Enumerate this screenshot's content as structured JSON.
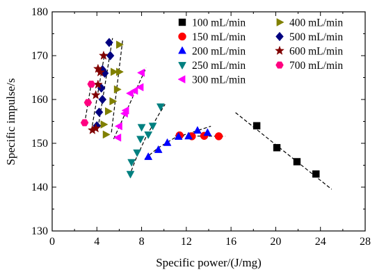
{
  "chart_data": {
    "type": "scatter",
    "title": "",
    "xlabel": "Specific power/(J/mg)",
    "ylabel": "Specific impulse/s",
    "xlim": [
      0,
      28
    ],
    "ylim": [
      130,
      180
    ],
    "xticks": [
      0,
      4,
      8,
      12,
      16,
      20,
      24,
      28
    ],
    "yticks": [
      130,
      140,
      150,
      160,
      170,
      180
    ],
    "grid": false,
    "legend_placement": "top-right",
    "series": [
      {
        "name": "100 mL/min",
        "marker": "square",
        "color": "#000000",
        "points": [
          [
            18.3,
            154.0
          ],
          [
            20.1,
            149.0
          ],
          [
            21.9,
            145.8
          ],
          [
            23.6,
            143.0
          ]
        ],
        "fit": [
          [
            16.4,
            157.0
          ],
          [
            25.0,
            139.5
          ]
        ]
      },
      {
        "name": "150 mL/min",
        "marker": "circle",
        "color": "#ff0000",
        "points": [
          [
            11.4,
            151.8
          ],
          [
            12.5,
            151.6
          ],
          [
            13.6,
            151.7
          ],
          [
            14.9,
            151.6
          ]
        ],
        "fit": [
          [
            11.0,
            151.7
          ],
          [
            15.5,
            151.6
          ]
        ]
      },
      {
        "name": "200 mL/min",
        "marker": "triangle-up",
        "color": "#0000ff",
        "points": [
          [
            8.6,
            146.9
          ],
          [
            9.5,
            148.5
          ],
          [
            10.3,
            150.1
          ],
          [
            11.3,
            151.5
          ],
          [
            12.2,
            151.6
          ],
          [
            13.0,
            152.9
          ],
          [
            13.9,
            152.4
          ]
        ],
        "fit": [
          [
            8.3,
            146.5
          ],
          [
            9.5,
            149.0
          ],
          [
            11.0,
            151.3
          ],
          [
            12.5,
            152.5
          ],
          [
            14.2,
            153.9
          ]
        ]
      },
      {
        "name": "250 mL/min",
        "marker": "triangle-down",
        "color": "#008080",
        "points": [
          [
            7.0,
            143.0
          ],
          [
            7.1,
            145.7
          ],
          [
            7.6,
            147.9
          ],
          [
            7.9,
            151.0
          ],
          [
            8.0,
            153.7
          ],
          [
            8.6,
            152.0
          ],
          [
            9.0,
            154.0
          ],
          [
            9.7,
            158.4
          ]
        ],
        "fit": [
          [
            6.9,
            142.5
          ],
          [
            7.5,
            146.5
          ],
          [
            8.4,
            151.5
          ],
          [
            9.4,
            156.0
          ],
          [
            10.1,
            158.9
          ]
        ]
      },
      {
        "name": "300 mL/min",
        "marker": "triangle-left",
        "color": "#ff00ff",
        "points": [
          [
            5.9,
            151.3
          ],
          [
            6.0,
            153.9
          ],
          [
            6.5,
            156.8
          ],
          [
            6.6,
            157.5
          ],
          [
            7.0,
            161.4
          ],
          [
            7.4,
            162.0
          ],
          [
            7.9,
            162.8
          ],
          [
            8.0,
            166.1
          ]
        ],
        "fit": [
          [
            5.5,
            151.0
          ],
          [
            8.4,
            167.2
          ]
        ]
      },
      {
        "name": "400 mL/min",
        "marker": "triangle-right",
        "color": "#808000",
        "points": [
          [
            4.8,
            152.0
          ],
          [
            4.6,
            154.3
          ],
          [
            5.0,
            157.3
          ],
          [
            5.4,
            159.6
          ],
          [
            5.8,
            162.3
          ],
          [
            5.5,
            166.3
          ],
          [
            6.0,
            166.3
          ],
          [
            6.0,
            172.5
          ]
        ],
        "fit": [
          [
            5.3,
            152.5
          ],
          [
            6.3,
            173.5
          ]
        ]
      },
      {
        "name": "500 mL/min",
        "marker": "diamond",
        "color": "#000080",
        "points": [
          [
            4.0,
            154.0
          ],
          [
            4.2,
            157.1
          ],
          [
            4.5,
            160.0
          ],
          [
            4.4,
            162.6
          ],
          [
            4.7,
            166.0
          ],
          [
            4.5,
            166.8
          ],
          [
            5.2,
            170.0
          ],
          [
            5.1,
            173.0
          ]
        ],
        "fit": [
          [
            4.1,
            153.5
          ],
          [
            5.4,
            174.0
          ]
        ]
      },
      {
        "name": "600 mL/min",
        "marker": "star",
        "color": "#800000",
        "points": [
          [
            3.6,
            153.0
          ],
          [
            3.9,
            153.4
          ],
          [
            3.9,
            161.0
          ],
          [
            4.1,
            163.4
          ],
          [
            4.1,
            167.0
          ],
          [
            4.3,
            166.2
          ],
          [
            4.6,
            170.0
          ]
        ],
        "fit": [
          [
            3.5,
            152.8
          ],
          [
            4.7,
            170.5
          ]
        ]
      },
      {
        "name": "700 mL/min",
        "marker": "hexagon",
        "color": "#ff0080",
        "points": [
          [
            2.9,
            154.7
          ],
          [
            3.2,
            159.3
          ],
          [
            3.5,
            163.5
          ]
        ],
        "fit": [
          [
            2.9,
            154.5
          ],
          [
            3.5,
            163.7
          ]
        ]
      }
    ]
  }
}
